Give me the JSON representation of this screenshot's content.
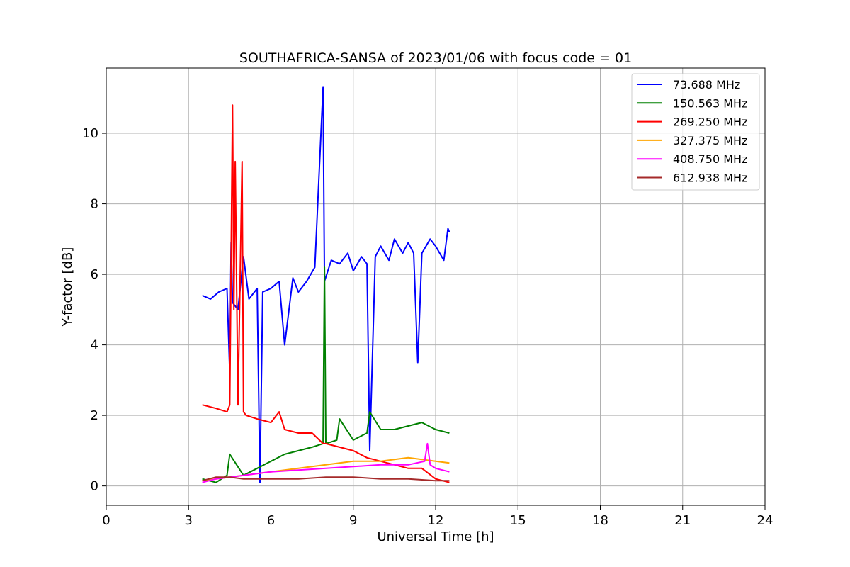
{
  "chart_data": {
    "type": "line",
    "title": "SOUTHAFRICA-SANSA of 2023/01/06 with focus code = 01",
    "xlabel": "Universal Time [h]",
    "ylabel": "Y-factor [dB]",
    "xlim": [
      0,
      24
    ],
    "ylim": [
      -0.55,
      11.85
    ],
    "xticks": [
      0,
      3,
      6,
      9,
      12,
      15,
      18,
      21,
      24
    ],
    "yticks": [
      0,
      2,
      4,
      6,
      8,
      10
    ],
    "xtick_labels": [
      "0",
      "3",
      "6",
      "9",
      "12",
      "15",
      "18",
      "21",
      "24"
    ],
    "ytick_labels": [
      "0",
      "2",
      "4",
      "6",
      "8",
      "10"
    ],
    "grid": true,
    "legend_position": "top-right",
    "series": [
      {
        "name": " 73.688 MHz",
        "color": "#0000ff",
        "x": [
          3.5,
          3.8,
          4.1,
          4.4,
          4.5,
          4.55,
          4.6,
          4.8,
          5.0,
          5.2,
          5.5,
          5.6,
          5.7,
          6.0,
          6.3,
          6.5,
          6.8,
          7.0,
          7.3,
          7.6,
          7.9,
          7.95,
          8.2,
          8.5,
          8.8,
          9.0,
          9.3,
          9.5,
          9.6,
          9.8,
          10.0,
          10.3,
          10.5,
          10.8,
          11.0,
          11.2,
          11.35,
          11.5,
          11.8,
          12.0,
          12.3,
          12.45,
          12.5
        ],
        "y": [
          5.4,
          5.3,
          5.5,
          5.6,
          3.2,
          6.9,
          5.2,
          5.0,
          6.5,
          5.3,
          5.6,
          0.1,
          5.5,
          5.6,
          5.8,
          4.0,
          5.9,
          5.5,
          5.8,
          6.2,
          11.3,
          5.8,
          6.4,
          6.3,
          6.6,
          6.1,
          6.5,
          6.3,
          1.0,
          6.5,
          6.8,
          6.4,
          7.0,
          6.6,
          6.9,
          6.6,
          3.5,
          6.6,
          7.0,
          6.8,
          6.4,
          7.3,
          7.2
        ]
      },
      {
        "name": "150.563 MHz",
        "color": "#008000",
        "x": [
          3.5,
          4.0,
          4.4,
          4.5,
          5.0,
          5.5,
          6.0,
          6.5,
          7.0,
          7.5,
          7.9,
          7.95,
          8.0,
          8.4,
          8.5,
          9.0,
          9.5,
          9.6,
          10.0,
          10.5,
          11.0,
          11.5,
          12.0,
          12.5
        ],
        "y": [
          0.2,
          0.1,
          0.3,
          0.9,
          0.3,
          0.5,
          0.7,
          0.9,
          1.0,
          1.1,
          1.2,
          6.2,
          1.2,
          1.3,
          1.9,
          1.3,
          1.5,
          2.1,
          1.6,
          1.6,
          1.7,
          1.8,
          1.6,
          1.5
        ]
      },
      {
        "name": "269.250 MHz",
        "color": "#ff0000",
        "x": [
          3.5,
          4.0,
          4.4,
          4.5,
          4.6,
          4.65,
          4.7,
          4.8,
          4.95,
          5.0,
          5.1,
          5.5,
          6.0,
          6.3,
          6.5,
          7.0,
          7.5,
          7.9,
          8.0,
          8.5,
          9.0,
          9.5,
          10.0,
          10.5,
          11.0,
          11.5,
          12.0,
          12.5
        ],
        "y": [
          2.3,
          2.2,
          2.1,
          2.3,
          10.8,
          5.0,
          9.2,
          2.3,
          9.2,
          2.1,
          2.0,
          1.9,
          1.8,
          2.1,
          1.6,
          1.5,
          1.5,
          1.2,
          1.2,
          1.1,
          1.0,
          0.8,
          0.7,
          0.6,
          0.5,
          0.5,
          0.2,
          0.1
        ]
      },
      {
        "name": "327.375 MHz",
        "color": "#ffa500",
        "x": [
          3.5,
          4.0,
          5.0,
          6.0,
          7.0,
          8.0,
          9.0,
          10.0,
          10.5,
          11.0,
          11.5,
          12.0,
          12.5
        ],
        "y": [
          0.15,
          0.2,
          0.3,
          0.4,
          0.5,
          0.6,
          0.7,
          0.7,
          0.75,
          0.8,
          0.75,
          0.7,
          0.65
        ]
      },
      {
        "name": "408.750 MHz",
        "color": "#ff00ff",
        "x": [
          3.5,
          4.0,
          5.0,
          6.0,
          7.0,
          8.0,
          9.0,
          10.0,
          11.0,
          11.6,
          11.7,
          11.8,
          12.0,
          12.5
        ],
        "y": [
          0.1,
          0.2,
          0.3,
          0.4,
          0.45,
          0.5,
          0.55,
          0.6,
          0.6,
          0.7,
          1.2,
          0.6,
          0.5,
          0.4
        ]
      },
      {
        "name": "612.938 MHz",
        "color": "#a52a2a",
        "x": [
          3.5,
          4.0,
          4.5,
          5.0,
          6.0,
          7.0,
          8.0,
          9.0,
          10.0,
          11.0,
          12.0,
          12.5
        ],
        "y": [
          0.15,
          0.25,
          0.25,
          0.2,
          0.2,
          0.2,
          0.25,
          0.25,
          0.2,
          0.2,
          0.15,
          0.15
        ]
      }
    ]
  }
}
